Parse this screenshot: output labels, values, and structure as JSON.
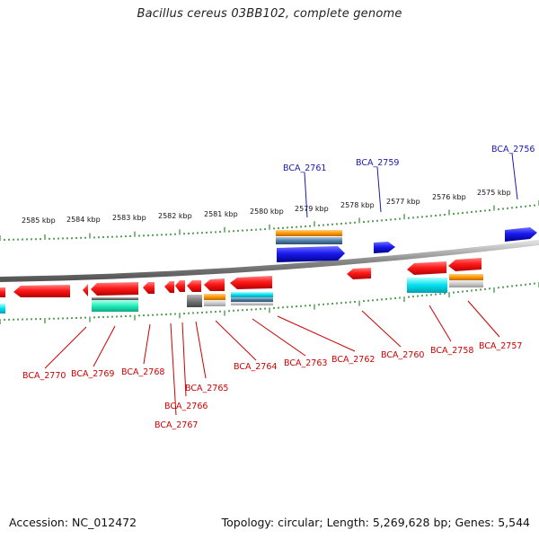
{
  "title": "Bacillus cereus 03BB102, complete genome",
  "footer": {
    "accession": "Accession: NC_012472",
    "topology": "Topology: circular; Length: 5,269,628 bp; Genes: 5,544"
  },
  "colors": {
    "backbone": "#888888",
    "ticks": "#2e8b2e",
    "forward_label": "#1a1aaa",
    "reverse_label": "#cc0000",
    "cds": "#ff1a1a",
    "cds_forward": "#1a1aee",
    "cog_orange": "#ff9900",
    "cog_steel": "#4f7fa6",
    "cog_cyan": "#00e0ee",
    "cog_mint": "#22eebb",
    "cog_gray": "#777777",
    "cog_lightgray": "#cccccc"
  },
  "kbp_labels": [
    "2585 kbp",
    "2584 kbp",
    "2583 kbp",
    "2582 kbp",
    "2581 kbp",
    "2580 kbp",
    "2579 kbp",
    "2578 kbp",
    "2577 kbp",
    "2576 kbp",
    "2575 kbp"
  ],
  "forward_gene_labels": [
    "BCA_2761",
    "BCA_2759",
    "BCA_2756"
  ],
  "reverse_gene_labels": [
    "BCA_2770",
    "BCA_2769",
    "BCA_2768",
    "BCA_2767",
    "BCA_2766",
    "BCA_2765",
    "BCA_2764",
    "BCA_2763",
    "BCA_2762",
    "BCA_2760",
    "BCA_2758",
    "BCA_2757"
  ]
}
